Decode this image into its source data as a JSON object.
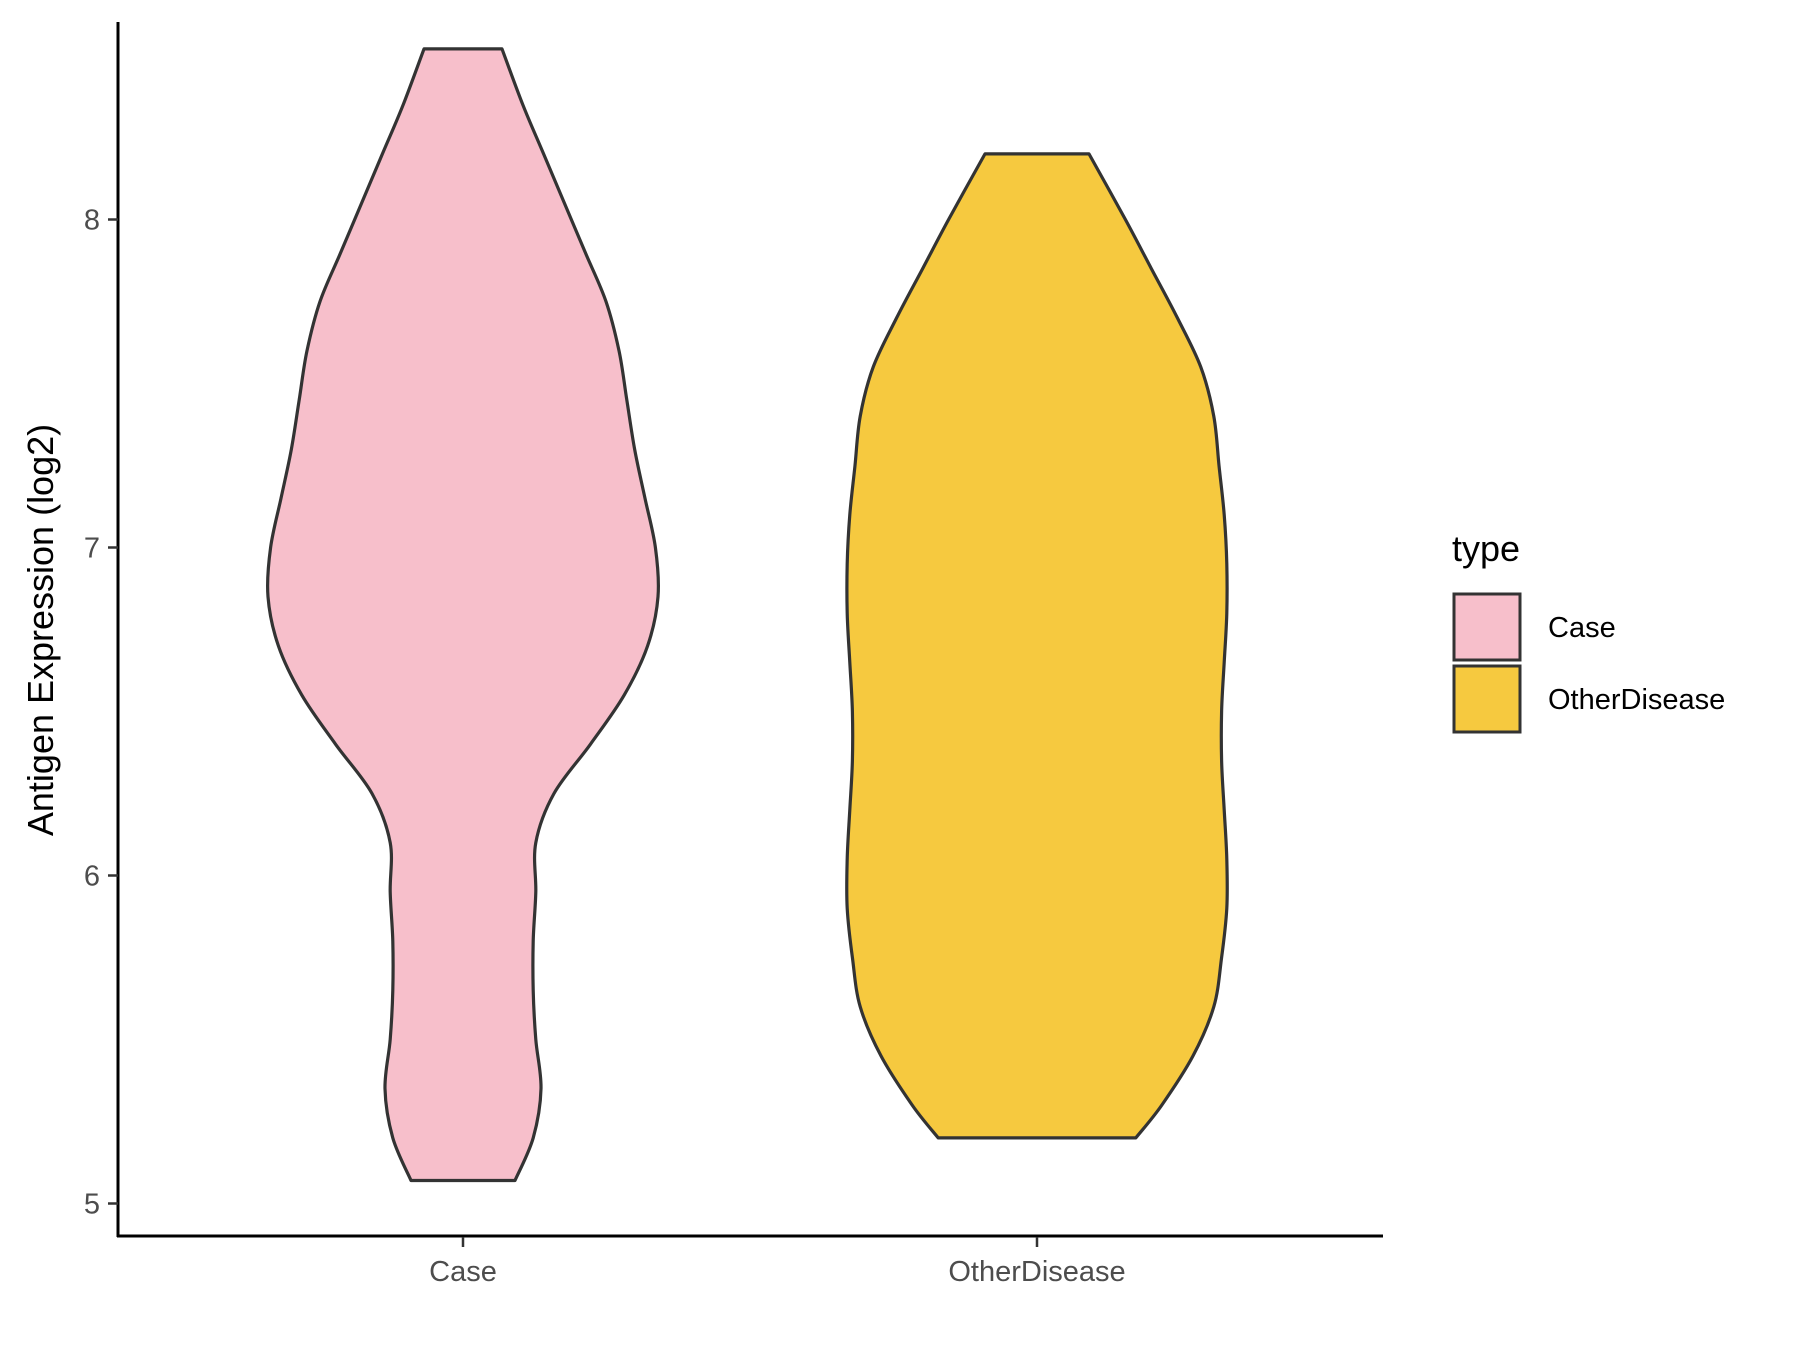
{
  "chart_data": {
    "type": "violin",
    "categories": [
      "Case",
      "OtherDisease"
    ],
    "ylabel": "Antigen Expression (log2)",
    "xlabel": "",
    "ylim": [
      4.9,
      8.7
    ],
    "yticks": [
      5,
      6,
      7,
      8
    ],
    "grid": false,
    "legend": {
      "title": "type",
      "position": "right",
      "entries": [
        {
          "label": "Case",
          "color": "#f7bfcb"
        },
        {
          "label": "OtherDisease",
          "color": "#f6c93f"
        }
      ]
    },
    "series": [
      {
        "category": "Case",
        "color": "#f7bfcb",
        "range": [
          5.07,
          8.52
        ],
        "density_profile": [
          [
            5.07,
            0.2
          ],
          [
            5.2,
            0.27
          ],
          [
            5.35,
            0.3
          ],
          [
            5.5,
            0.28
          ],
          [
            5.65,
            0.27
          ],
          [
            5.8,
            0.27
          ],
          [
            5.95,
            0.28
          ],
          [
            6.1,
            0.28
          ],
          [
            6.25,
            0.35
          ],
          [
            6.4,
            0.49
          ],
          [
            6.55,
            0.62
          ],
          [
            6.7,
            0.71
          ],
          [
            6.85,
            0.75
          ],
          [
            7.0,
            0.74
          ],
          [
            7.15,
            0.7
          ],
          [
            7.3,
            0.66
          ],
          [
            7.45,
            0.63
          ],
          [
            7.6,
            0.6
          ],
          [
            7.75,
            0.55
          ],
          [
            7.9,
            0.47
          ],
          [
            8.05,
            0.39
          ],
          [
            8.2,
            0.31
          ],
          [
            8.35,
            0.23
          ],
          [
            8.52,
            0.15
          ]
        ]
      },
      {
        "category": "OtherDisease",
        "color": "#f6c93f",
        "range": [
          5.2,
          8.2
        ],
        "density_profile": [
          [
            5.2,
            0.38
          ],
          [
            5.3,
            0.48
          ],
          [
            5.45,
            0.6
          ],
          [
            5.6,
            0.68
          ],
          [
            5.75,
            0.71
          ],
          [
            5.9,
            0.73
          ],
          [
            6.05,
            0.73
          ],
          [
            6.2,
            0.72
          ],
          [
            6.35,
            0.71
          ],
          [
            6.5,
            0.71
          ],
          [
            6.65,
            0.72
          ],
          [
            6.8,
            0.73
          ],
          [
            6.95,
            0.73
          ],
          [
            7.1,
            0.72
          ],
          [
            7.25,
            0.7
          ],
          [
            7.4,
            0.68
          ],
          [
            7.55,
            0.63
          ],
          [
            7.7,
            0.54
          ],
          [
            7.85,
            0.44
          ],
          [
            8.0,
            0.34
          ],
          [
            8.2,
            0.2
          ]
        ]
      }
    ]
  }
}
